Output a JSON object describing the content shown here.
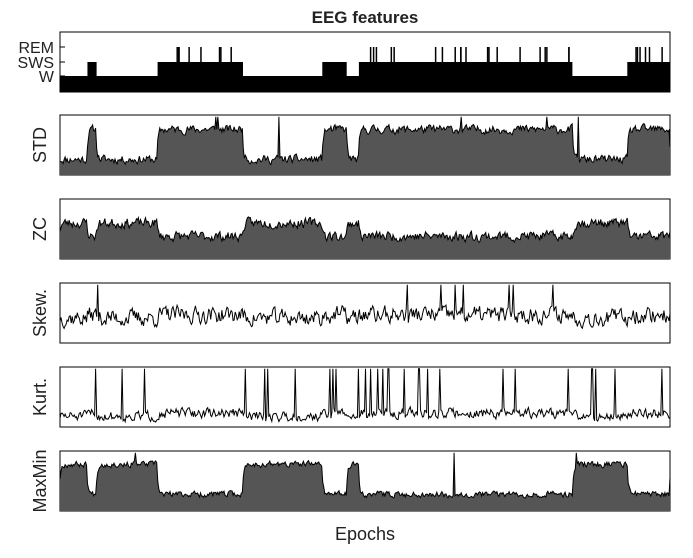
{
  "chart_data": {
    "type": "line",
    "title": "EEG features",
    "xlabel": "Epochs",
    "panels": [
      {
        "ylabel": "",
        "yticks": [
          "REM",
          "SWS",
          "W"
        ],
        "kind": "hypnogram",
        "segments": [
          {
            "from": 0,
            "to": 0.045,
            "level": "W"
          },
          {
            "from": 0.045,
            "to": 0.06,
            "level": "SWS"
          },
          {
            "from": 0.06,
            "to": 0.16,
            "level": "W"
          },
          {
            "from": 0.16,
            "to": 0.3,
            "level": "SWS",
            "rem_bursts": 8
          },
          {
            "from": 0.3,
            "to": 0.43,
            "level": "W"
          },
          {
            "from": 0.43,
            "to": 0.47,
            "level": "SWS"
          },
          {
            "from": 0.47,
            "to": 0.49,
            "level": "W"
          },
          {
            "from": 0.49,
            "to": 0.84,
            "level": "SWS",
            "rem_bursts": 20
          },
          {
            "from": 0.84,
            "to": 0.93,
            "level": "W"
          },
          {
            "from": 0.93,
            "to": 1.0,
            "level": "SWS",
            "rem_bursts": 6
          }
        ]
      },
      {
        "ylabel": "STD",
        "kind": "filled",
        "seed": 11,
        "base": 0.26,
        "high": 0.5,
        "noise": 0.11,
        "spikes": 6
      },
      {
        "ylabel": "ZC",
        "kind": "filled",
        "seed": 23,
        "base": 0.38,
        "high": 0.22,
        "noise": 0.13,
        "spikes": 0,
        "invert": true
      },
      {
        "ylabel": "Skew.",
        "kind": "line",
        "seed": 37,
        "base": 0.42,
        "high": 0.05,
        "noise": 0.22,
        "spikes": 8
      },
      {
        "ylabel": "Kurt.",
        "kind": "line",
        "seed": 51,
        "base": 0.18,
        "high": 0.05,
        "noise": 0.13,
        "spikes": 30
      },
      {
        "ylabel": "MaxMin",
        "kind": "filled",
        "seed": 67,
        "base": 0.28,
        "high": 0.5,
        "noise": 0.08,
        "spikes": 3,
        "invert": true
      }
    ]
  }
}
